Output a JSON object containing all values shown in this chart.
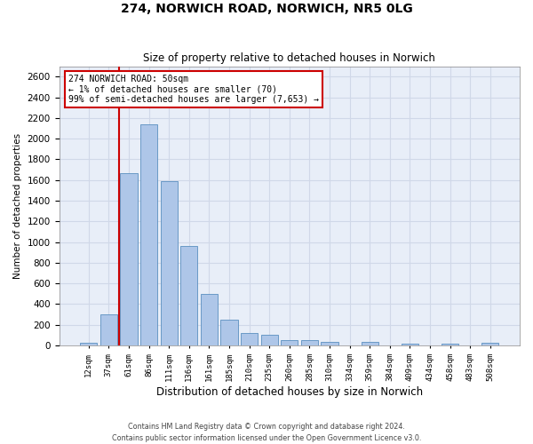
{
  "title_line1": "274, NORWICH ROAD, NORWICH, NR5 0LG",
  "title_line2": "Size of property relative to detached houses in Norwich",
  "xlabel": "Distribution of detached houses by size in Norwich",
  "ylabel": "Number of detached properties",
  "footer_line1": "Contains HM Land Registry data © Crown copyright and database right 2024.",
  "footer_line2": "Contains public sector information licensed under the Open Government Licence v3.0.",
  "annotation_line1": "274 NORWICH ROAD: 50sqm",
  "annotation_line2": "← 1% of detached houses are smaller (70)",
  "annotation_line3": "99% of semi-detached houses are larger (7,653) →",
  "bar_labels": [
    "12sqm",
    "37sqm",
    "61sqm",
    "86sqm",
    "111sqm",
    "136sqm",
    "161sqm",
    "185sqm",
    "210sqm",
    "235sqm",
    "260sqm",
    "285sqm",
    "310sqm",
    "334sqm",
    "359sqm",
    "384sqm",
    "409sqm",
    "434sqm",
    "458sqm",
    "483sqm",
    "508sqm"
  ],
  "bar_values": [
    25,
    300,
    1670,
    2140,
    1590,
    960,
    500,
    250,
    120,
    100,
    50,
    50,
    35,
    0,
    35,
    0,
    20,
    0,
    20,
    0,
    25
  ],
  "bar_color": "#aec6e8",
  "bar_edge_color": "#5a8fc0",
  "vline_x": 1.5,
  "vline_color": "#cc0000",
  "ylim": [
    0,
    2700
  ],
  "yticks": [
    0,
    200,
    400,
    600,
    800,
    1000,
    1200,
    1400,
    1600,
    1800,
    2000,
    2200,
    2400,
    2600
  ],
  "grid_color": "#d0d8e8",
  "background_color": "#e8eef8",
  "annotation_box_facecolor": "white",
  "annotation_box_edgecolor": "#cc0000"
}
